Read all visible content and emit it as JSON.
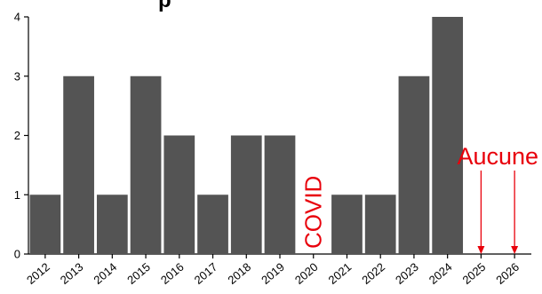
{
  "chart_data": {
    "type": "bar",
    "title": "p",
    "xlabel": "",
    "ylabel": "",
    "categories": [
      "2012",
      "2013",
      "2014",
      "2015",
      "2016",
      "2017",
      "2018",
      "2019",
      "2020",
      "2021",
      "2022",
      "2023",
      "2024",
      "2025",
      "2026"
    ],
    "values": [
      1,
      3,
      1,
      3,
      2,
      1,
      2,
      2,
      0,
      1,
      1,
      3,
      4,
      0,
      0
    ],
    "ylim": [
      0,
      4
    ],
    "yticks": [
      0,
      1,
      2,
      3,
      4
    ],
    "grid": false,
    "bar_color": "#545454",
    "annotations": [
      {
        "text": "COVID",
        "category": "2020",
        "color": "#e8000b",
        "rotated": true
      },
      {
        "text": "Aucune",
        "categories": [
          "2025",
          "2026"
        ],
        "color": "#e8000b",
        "arrows": true
      }
    ]
  }
}
